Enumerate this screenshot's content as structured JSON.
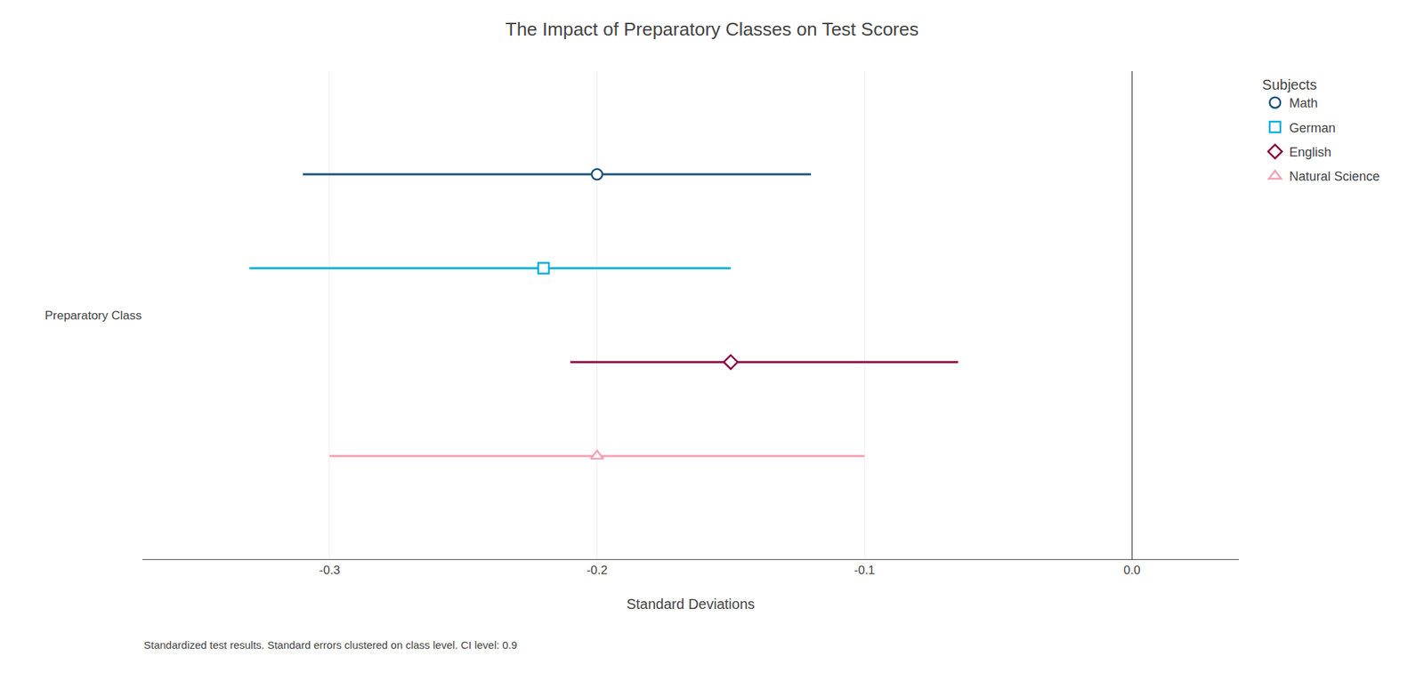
{
  "chart_data": {
    "type": "scatter",
    "orientation": "horizontal",
    "title": "The Impact of Preparatory Classes on Test Scores",
    "x_label": "Standard Deviations",
    "legend_title": "Subjects",
    "annotations": [
      "Standardized test results. Standard errors clustered on class level. CI level: 0.9"
    ],
    "categories": [
      "Preparatory Class"
    ],
    "series": [
      {
        "name": "Math",
        "color": "#1a5276",
        "marker": "circle",
        "values": [
          -0.2
        ],
        "ci_lo": [
          -0.31
        ],
        "ci_hi": [
          -0.12
        ]
      },
      {
        "name": "German",
        "color": "#00aedb",
        "marker": "square",
        "values": [
          -0.22
        ],
        "ci_lo": [
          -0.33
        ],
        "ci_hi": [
          -0.15
        ]
      },
      {
        "name": "English",
        "color": "#8b0040",
        "marker": "diamond",
        "values": [
          -0.15
        ],
        "ci_lo": [
          -0.21
        ],
        "ci_hi": [
          -0.065
        ]
      },
      {
        "name": "Natural Science",
        "color": "#f4a0b5",
        "marker": "triangle-up",
        "values": [
          -0.2
        ],
        "ci_lo": [
          -0.3
        ],
        "ci_hi": [
          -0.1
        ]
      }
    ],
    "xlim": [
      -0.37,
      0.04
    ],
    "xticks": [
      -0.3,
      -0.2,
      -0.1,
      {
        "value": 0.0,
        "label": "0.0"
      }
    ],
    "grid": true,
    "legend": "upper right"
  }
}
